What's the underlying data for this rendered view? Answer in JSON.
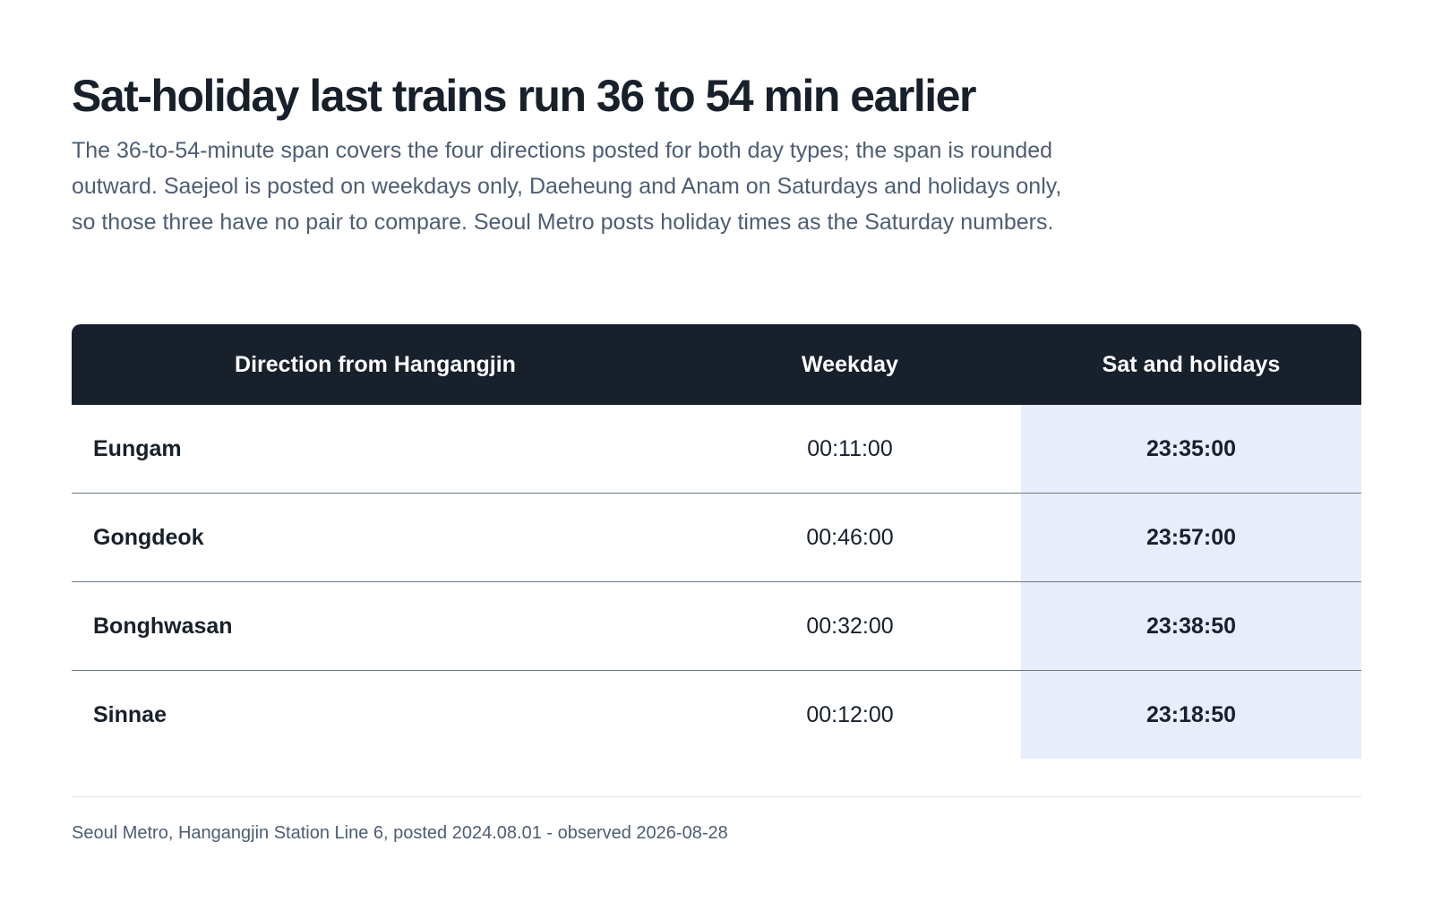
{
  "title": "Sat-holiday last trains run 36 to 54 min earlier",
  "subtitle": "The 36-to-54-minute span covers the four directions posted for both day types; the span is rounded outward. Saejeol is posted on weekdays only, Daeheung and Anam on Saturdays and holidays only, so those three have no pair to compare. Seoul Metro posts holiday times as the Saturday numbers.",
  "source": "Seoul Metro, Hangangjin Station Line 6, posted 2024.08.01 - observed 2026-08-28",
  "colors": {
    "header_bg": "#18202b",
    "highlight_column_bg": "#e7edfb",
    "text_primary": "#18202b",
    "text_muted": "#4d5d73"
  },
  "chart_data": {
    "type": "table",
    "columns": [
      "Direction from Hangangjin",
      "Weekday",
      "Sat and holidays"
    ],
    "rows": [
      [
        "Eungam",
        "00:11:00",
        "23:35:00"
      ],
      [
        "Gongdeok",
        "00:46:00",
        "23:57:00"
      ],
      [
        "Bonghwasan",
        "00:32:00",
        "23:38:50"
      ],
      [
        "Sinnae",
        "00:12:00",
        "23:18:50"
      ]
    ],
    "highlighted_column": "Sat and holidays"
  }
}
